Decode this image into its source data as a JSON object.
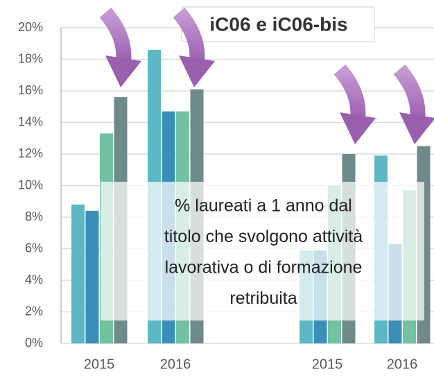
{
  "chart_data": {
    "type": "bar",
    "title": "iC06 e iC06-bis",
    "annotation": [
      "% laureati a 1 anno dal",
      "titolo che svolgono attività",
      "lavorativa o di formazione",
      "retribuita"
    ],
    "categories": [
      "2015",
      "2016",
      null,
      "2015",
      "2016"
    ],
    "series": [
      {
        "color": "#5bb8c4",
        "values": [
          8.8,
          18.6,
          null,
          5.9,
          11.9
        ]
      },
      {
        "color": "#3a8fb8",
        "values": [
          8.4,
          14.7,
          null,
          5.9,
          6.3
        ]
      },
      {
        "color": "#72c2a2",
        "values": [
          13.3,
          14.7,
          null,
          10.0,
          9.7
        ]
      },
      {
        "color": "#6f8a8a",
        "values": [
          15.6,
          16.1,
          null,
          12.0,
          12.5
        ]
      }
    ],
    "ylim": [
      0,
      20
    ],
    "yticks": [
      {
        "value": 0,
        "label": "0%"
      },
      {
        "value": 2,
        "label": "2%"
      },
      {
        "value": 4,
        "label": "4%"
      },
      {
        "value": 6,
        "label": "6%"
      },
      {
        "value": 8,
        "label": "8%"
      },
      {
        "value": 10,
        "label": "10%"
      },
      {
        "value": 12,
        "label": "12%"
      },
      {
        "value": 14,
        "label": "14%"
      },
      {
        "value": 16,
        "label": "16%"
      },
      {
        "value": 18,
        "label": "18%"
      },
      {
        "value": 20,
        "label": "20%"
      }
    ],
    "grid": true
  }
}
